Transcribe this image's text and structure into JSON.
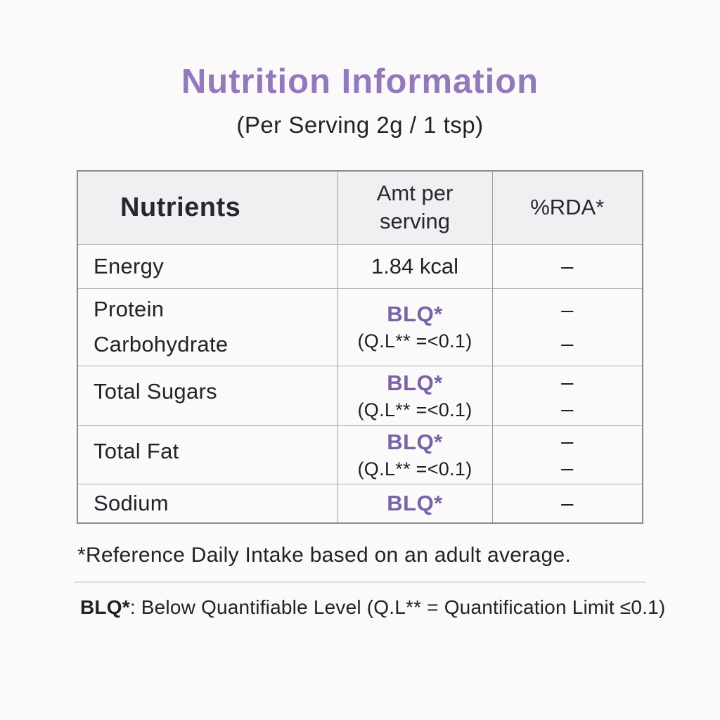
{
  "header": {
    "title": "Nutrition Information",
    "subtitle": "(Per Serving 2g / 1 tsp)"
  },
  "table": {
    "columns": [
      "Nutrients",
      "Amt per serving",
      "%RDA*"
    ],
    "rows": [
      {
        "nutrients": [
          "Energy"
        ],
        "amount_main": "1.84 kcal",
        "rda": [
          "–"
        ]
      },
      {
        "nutrients": [
          "Protein",
          "Carbohydrate"
        ],
        "amount_main": "BLQ*",
        "amount_sub": "(Q.L** =<0.1)",
        "rda": [
          "–",
          "–"
        ]
      },
      {
        "nutrients": [
          "Total Sugars"
        ],
        "amount_main": "BLQ*",
        "amount_sub": "(Q.L** =<0.1)",
        "rda": [
          "–",
          "–"
        ]
      },
      {
        "nutrients": [
          "Total Fat"
        ],
        "amount_main": "BLQ*",
        "amount_sub": "(Q.L** =<0.1)",
        "rda": [
          "–",
          "–"
        ]
      },
      {
        "nutrients": [
          "Sodium"
        ],
        "amount_main": "BLQ*",
        "rda": [
          "–"
        ]
      }
    ]
  },
  "footnotes": {
    "rda_note": "*Reference Daily Intake based on an adult average.",
    "blq_label": "BLQ*",
    "blq_note": ": Below Quantifiable Level (Q.L** = Quantification Limit ≤0.1)"
  },
  "colors": {
    "title_purple": "#9379bb",
    "blq_purple": "#7b61a6",
    "header_row_bg": "#f1eff2",
    "table_border": "#8c8c8c"
  }
}
